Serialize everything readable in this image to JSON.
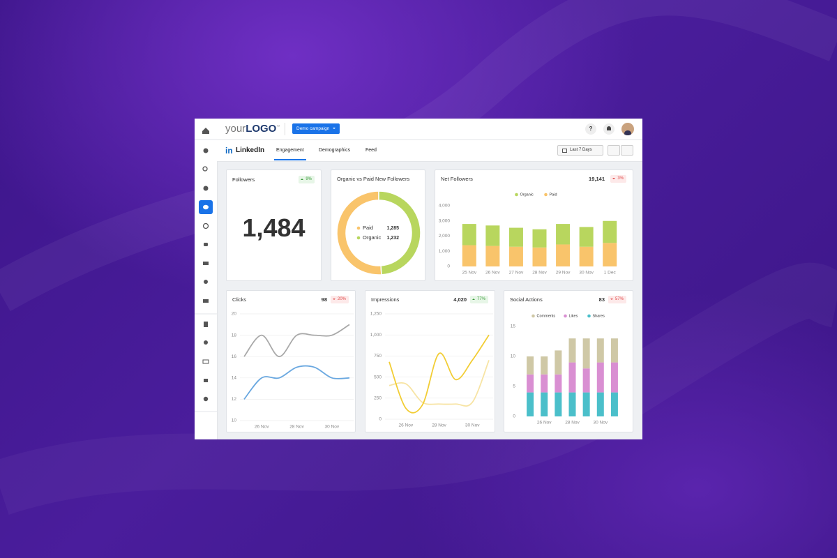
{
  "header": {
    "logo_prefix": "your",
    "logo_main": "LOGO",
    "logo_tm": "™",
    "campaign": "Demo campaign",
    "help": "?"
  },
  "nav": {
    "platform": "LinkedIn",
    "tabs": [
      "Engagement",
      "Demographics",
      "Feed"
    ],
    "date_range": "Last 7 Days"
  },
  "followers": {
    "title": "Followers",
    "value": "1,484",
    "change": "9%",
    "direction": "up"
  },
  "chart_data": [
    {
      "type": "donut",
      "title": "Organic vs Paid New Followers",
      "categories": [
        "Paid",
        "Organic"
      ],
      "values": [
        1285,
        1232
      ],
      "value_labels": [
        "1,285",
        "1,232"
      ],
      "colors": [
        "#f9c46b",
        "#b8d65e"
      ]
    },
    {
      "type": "bar",
      "stacked": true,
      "title": "Net Followers",
      "total": "19,141",
      "change": "3%",
      "direction": "down",
      "categories": [
        "25 Nov",
        "26 Nov",
        "27 Nov",
        "28 Nov",
        "29 Nov",
        "30 Nov",
        "1 Dec"
      ],
      "series": [
        {
          "name": "Organic",
          "color": "#b8d65e",
          "values": [
            1400,
            1350,
            1250,
            1200,
            1350,
            1300,
            1450
          ]
        },
        {
          "name": "Paid",
          "color": "#f9c46b",
          "values": [
            1400,
            1350,
            1300,
            1250,
            1450,
            1300,
            1550
          ]
        }
      ],
      "ylim": [
        0,
        4000
      ],
      "yticks": [
        0,
        {
          "value": 1000,
          "label": "1,000"
        },
        {
          "value": 2000,
          "label": "2,000"
        },
        {
          "value": 3000,
          "label": "3,000"
        },
        {
          "value": 4000,
          "label": "4,000"
        }
      ],
      "grid": false
    },
    {
      "type": "line",
      "title": "Clicks",
      "total": "98",
      "change": "20%",
      "direction": "down",
      "categories": [
        null,
        "26 Nov",
        null,
        "28 Nov",
        null,
        "30 Nov",
        null
      ],
      "series": [
        {
          "color": "#a9a9a9",
          "values": [
            16,
            18,
            16,
            18,
            18,
            18,
            19
          ]
        },
        {
          "color": "#6aa8e0",
          "values": [
            12,
            14,
            14,
            15,
            15,
            14,
            14
          ]
        }
      ],
      "ylim": [
        10,
        20
      ],
      "yticks": [
        10,
        12,
        14,
        16,
        18,
        20
      ],
      "grid": true
    },
    {
      "type": "line",
      "title": "Impressions",
      "total": "4,020",
      "change": "77%",
      "direction": "up",
      "categories": [
        null,
        "26 Nov",
        null,
        "28 Nov",
        null,
        "30 Nov",
        null
      ],
      "series": [
        {
          "color": "#f7e4a4",
          "values": [
            400,
            420,
            200,
            180,
            180,
            200,
            700
          ]
        },
        {
          "color": "#f2cd35",
          "values": [
            680,
            130,
            170,
            780,
            470,
            700,
            1000
          ]
        }
      ],
      "ylim": [
        0,
        1250
      ],
      "yticks": [
        0,
        250,
        500,
        750,
        {
          "value": 1000,
          "label": "1,000"
        },
        {
          "value": 1250,
          "label": "1,250"
        }
      ],
      "grid": true
    },
    {
      "type": "bar",
      "stacked": true,
      "title": "Social Actions",
      "total": "83",
      "change": "57%",
      "direction": "down",
      "categories": [
        null,
        "26 Nov",
        null,
        "28 Nov",
        null,
        "30 Nov",
        null
      ],
      "series": [
        {
          "name": "Comments",
          "color": "#cfc8a6",
          "values": [
            3,
            3,
            4,
            4,
            5,
            4,
            4
          ]
        },
        {
          "name": "Likes",
          "color": "#d98fd2",
          "values": [
            3,
            3,
            3,
            5,
            4,
            5,
            5
          ]
        },
        {
          "name": "Shares",
          "color": "#4bbfca",
          "values": [
            4,
            4,
            4,
            4,
            4,
            4,
            4
          ]
        }
      ],
      "ylim": [
        0,
        15
      ],
      "yticks": [
        0,
        5,
        10,
        15
      ],
      "grid": false
    }
  ]
}
